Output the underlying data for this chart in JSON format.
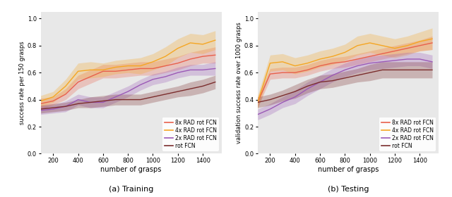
{
  "x": [
    100,
    200,
    300,
    400,
    500,
    600,
    700,
    800,
    900,
    1000,
    1100,
    1200,
    1300,
    1400,
    1500
  ],
  "train": {
    "8x_mean": [
      0.37,
      0.39,
      0.44,
      0.53,
      0.57,
      0.61,
      0.61,
      0.62,
      0.63,
      0.63,
      0.65,
      0.67,
      0.7,
      0.72,
      0.73
    ],
    "8x_std": [
      0.04,
      0.03,
      0.04,
      0.05,
      0.05,
      0.05,
      0.05,
      0.05,
      0.05,
      0.05,
      0.05,
      0.05,
      0.05,
      0.05,
      0.06
    ],
    "4x_mean": [
      0.39,
      0.42,
      0.5,
      0.61,
      0.62,
      0.62,
      0.64,
      0.65,
      0.65,
      0.68,
      0.72,
      0.78,
      0.82,
      0.81,
      0.84
    ],
    "4x_std": [
      0.04,
      0.04,
      0.05,
      0.06,
      0.06,
      0.05,
      0.05,
      0.05,
      0.06,
      0.06,
      0.07,
      0.07,
      0.07,
      0.07,
      0.07
    ],
    "2x_mean": [
      0.32,
      0.33,
      0.35,
      0.4,
      0.38,
      0.38,
      0.42,
      0.46,
      0.51,
      0.55,
      0.57,
      0.6,
      0.62,
      0.62,
      0.63
    ],
    "2x_std": [
      0.03,
      0.03,
      0.04,
      0.04,
      0.04,
      0.04,
      0.04,
      0.04,
      0.04,
      0.04,
      0.04,
      0.04,
      0.04,
      0.04,
      0.05
    ],
    "rot_mean": [
      0.33,
      0.34,
      0.35,
      0.37,
      0.38,
      0.39,
      0.4,
      0.4,
      0.4,
      0.42,
      0.44,
      0.46,
      0.48,
      0.5,
      0.53
    ],
    "rot_std": [
      0.03,
      0.03,
      0.03,
      0.03,
      0.04,
      0.04,
      0.04,
      0.04,
      0.04,
      0.04,
      0.04,
      0.04,
      0.05,
      0.05,
      0.05
    ]
  },
  "test": {
    "8x_mean": [
      0.38,
      0.59,
      0.6,
      0.6,
      0.62,
      0.65,
      0.67,
      0.68,
      0.7,
      0.72,
      0.74,
      0.76,
      0.78,
      0.8,
      0.82
    ],
    "8x_std": [
      0.04,
      0.04,
      0.04,
      0.04,
      0.04,
      0.04,
      0.04,
      0.04,
      0.04,
      0.04,
      0.04,
      0.04,
      0.04,
      0.04,
      0.05
    ],
    "4x_mean": [
      0.38,
      0.67,
      0.68,
      0.65,
      0.67,
      0.7,
      0.72,
      0.75,
      0.8,
      0.82,
      0.8,
      0.78,
      0.8,
      0.83,
      0.85
    ],
    "4x_std": [
      0.05,
      0.06,
      0.06,
      0.06,
      0.06,
      0.06,
      0.06,
      0.06,
      0.07,
      0.07,
      0.07,
      0.07,
      0.07,
      0.07,
      0.08
    ],
    "2x_mean": [
      0.29,
      0.33,
      0.38,
      0.42,
      0.48,
      0.53,
      0.58,
      0.62,
      0.65,
      0.67,
      0.68,
      0.69,
      0.7,
      0.7,
      0.68
    ],
    "2x_std": [
      0.04,
      0.04,
      0.04,
      0.05,
      0.05,
      0.05,
      0.05,
      0.05,
      0.05,
      0.05,
      0.05,
      0.05,
      0.05,
      0.05,
      0.05
    ],
    "rot_mean": [
      0.38,
      0.4,
      0.43,
      0.46,
      0.5,
      0.53,
      0.54,
      0.56,
      0.58,
      0.6,
      0.62,
      0.62,
      0.62,
      0.62,
      0.62
    ],
    "rot_std": [
      0.04,
      0.04,
      0.04,
      0.05,
      0.05,
      0.05,
      0.05,
      0.05,
      0.05,
      0.06,
      0.06,
      0.06,
      0.06,
      0.06,
      0.06
    ]
  },
  "colors": {
    "8x": "#e8604c",
    "4x": "#f5a623",
    "2x": "#9b59b6",
    "rot": "#7B2D2D"
  },
  "alpha_fill": 0.28,
  "bg_color": "#e8e8e8",
  "ylabel_train": "success rate per 150 grasps",
  "ylabel_test": "validation success rate over 1000 grasps",
  "xlabel": "number of grasps",
  "subtitle_train": "(a) Training",
  "subtitle_test": "(b) Testing",
  "ylim": [
    0.0,
    1.05
  ],
  "yticks": [
    0.0,
    0.2,
    0.4,
    0.6,
    0.8,
    1.0
  ],
  "xticks": [
    200,
    400,
    600,
    800,
    1000,
    1200,
    1400
  ],
  "legend_labels": [
    "8x RAD rot FCN",
    "4x RAD rot FCN",
    "2x RAD rot FCN",
    "rot FCN"
  ]
}
